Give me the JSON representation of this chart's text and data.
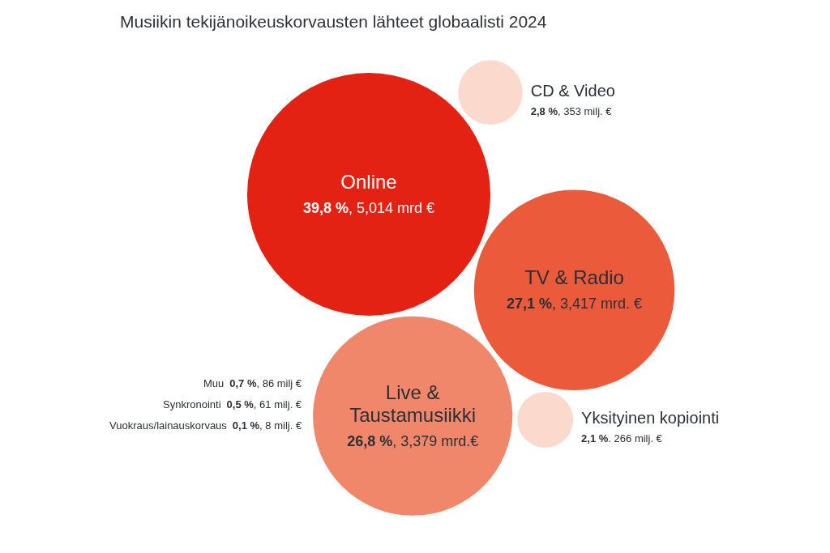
{
  "chart_data": {
    "type": "other",
    "title": "Musiikin tekijänoikeuskorvausten lähteet globaalisti 2024",
    "categories": [
      "Online",
      "TV & Radio",
      "Live & Taustamusiikki",
      "CD & Video",
      "Yksityinen kopiointi",
      "Muu",
      "Synkronointi",
      "Vuokraus/lainauskorvaus"
    ],
    "values": [
      39.8,
      27.1,
      26.8,
      2.8,
      2.1,
      0.7,
      0.5,
      0.1
    ],
    "value_labels": [
      "39,8 %,  5,014 mrd €",
      "27,1 %, 3,417 mrd. €",
      "26,8 %, 3,379 mrd.€",
      "2,8 %, 353 milj. €",
      "2,1 %. 266 milj. €",
      "0,7 %, 86 milj €",
      "0,5 %, 61 milj. €",
      "0,1 %, 8 milj. €"
    ],
    "colors": [
      "#e32213",
      "#eb5a3a",
      "#f0876a",
      "#fbd9cc",
      "#fbd9cc",
      null,
      null,
      null
    ]
  }
}
